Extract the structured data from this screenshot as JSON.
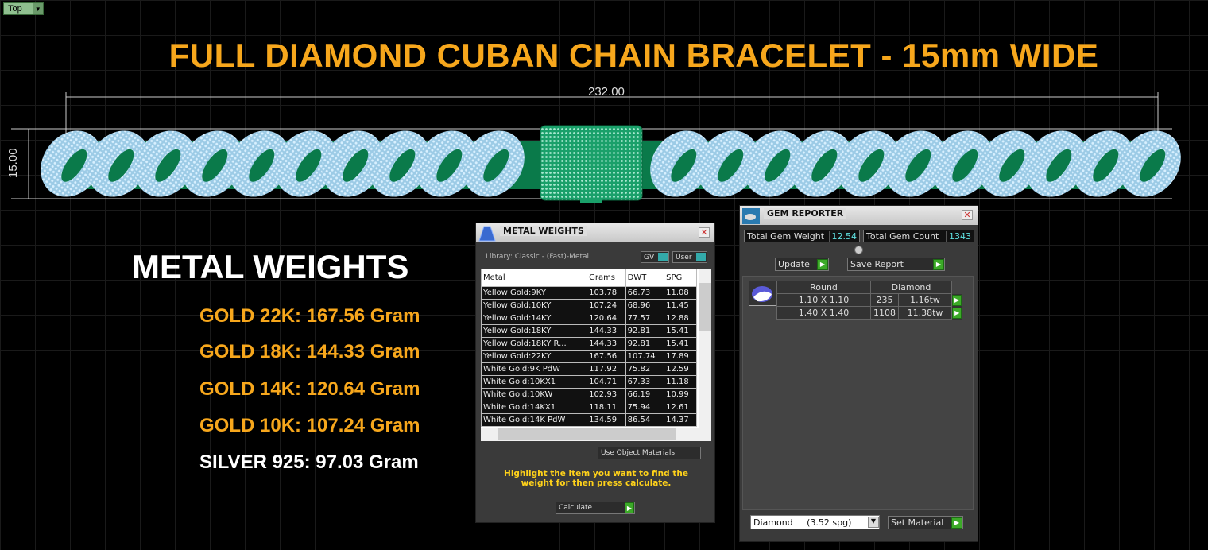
{
  "viewport": {
    "label": "Top"
  },
  "title": "FULL DIAMOND CUBAN CHAIN BRACELET - 15mm WIDE",
  "dimensions": {
    "width": "232.00",
    "height": "15.00"
  },
  "metal_weights_summary": {
    "heading": "METAL WEIGHTS",
    "lines": [
      {
        "text": "GOLD 22K: 167.56 Gram",
        "color": "#f7a71c"
      },
      {
        "text": "GOLD 18K: 144.33 Gram",
        "color": "#f7a71c"
      },
      {
        "text": "GOLD 14K: 120.64 Gram",
        "color": "#f7a71c"
      },
      {
        "text": "GOLD 10K: 107.24 Gram",
        "color": "#f7a71c"
      },
      {
        "text": "SILVER 925: 97.03 Gram",
        "color": "#ffffff"
      }
    ]
  },
  "metal_panel": {
    "title": "METAL WEIGHTS",
    "library": "Library: Classic - (Fast)-Metal",
    "gv": "GV",
    "user": "User",
    "columns": [
      "Metal",
      "Grams",
      "DWT",
      "SPG"
    ],
    "rows": [
      [
        "Yellow Gold:9KY",
        "103.78",
        "66.73",
        "11.08"
      ],
      [
        "Yellow Gold:10KY",
        "107.24",
        "68.96",
        "11.45"
      ],
      [
        "Yellow Gold:14KY",
        "120.64",
        "77.57",
        "12.88"
      ],
      [
        "Yellow Gold:18KY",
        "144.33",
        "92.81",
        "15.41"
      ],
      [
        "Yellow Gold:18KY R...",
        "144.33",
        "92.81",
        "15.41"
      ],
      [
        "Yellow Gold:22KY",
        "167.56",
        "107.74",
        "17.89"
      ],
      [
        "White Gold:9K PdW",
        "117.92",
        "75.82",
        "12.59"
      ],
      [
        "White Gold:10KX1",
        "104.71",
        "67.33",
        "11.18"
      ],
      [
        "White Gold:10KW",
        "102.93",
        "66.19",
        "10.99"
      ],
      [
        "White Gold:14KX1",
        "118.11",
        "75.94",
        "12.61"
      ],
      [
        "White Gold:14K PdW",
        "134.59",
        "86.54",
        "14.37"
      ]
    ],
    "use_object_materials": "Use Object Materials",
    "hint": "Highlight the item you want to find the weight for then press calculate.",
    "calculate": "Calculate"
  },
  "gem_panel": {
    "title": "GEM REPORTER",
    "total_weight_label": "Total Gem Weight",
    "total_weight": "12.54",
    "total_count_label": "Total Gem Count",
    "total_count": "1343",
    "update": "Update",
    "save_report": "Save Report",
    "shape": "Round",
    "material": "Diamond",
    "rows": [
      [
        "1.10 X 1.10",
        "235",
        "1.16tw"
      ],
      [
        "1.40 X 1.40",
        "1108",
        "11.38tw"
      ]
    ],
    "material_select": "Diamond     (3.52 spg)",
    "set_material": "Set Material"
  },
  "colors": {
    "accent": "#f7a71c",
    "gem": "#a8d8f0",
    "metal": "#0e8a55"
  }
}
